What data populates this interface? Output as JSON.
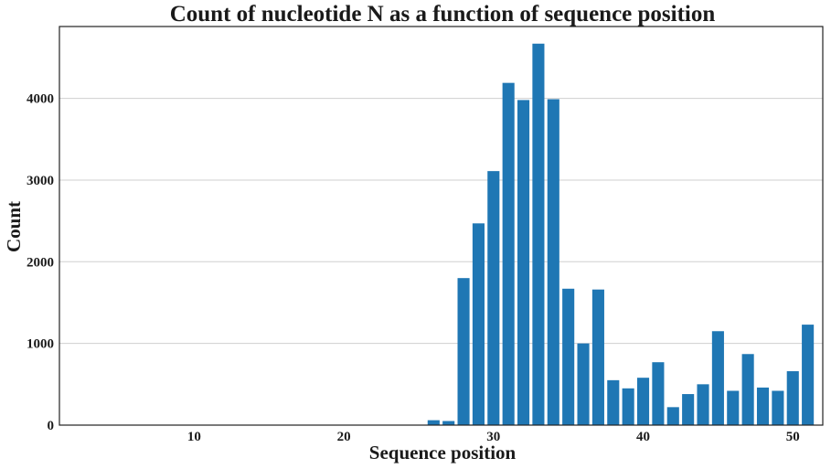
{
  "chart_data": {
    "type": "bar",
    "title": "Count of nucleotide N as a function of sequence position",
    "xlabel": "Sequence position",
    "ylabel": "Count",
    "x": [
      26,
      27,
      28,
      29,
      30,
      31,
      32,
      33,
      34,
      35,
      36,
      37,
      38,
      39,
      40,
      41,
      42,
      43,
      44,
      45,
      46,
      47,
      48,
      49,
      50,
      51
    ],
    "values": [
      60,
      50,
      1800,
      2470,
      3110,
      4190,
      3980,
      4670,
      3990,
      1670,
      1000,
      1660,
      550,
      450,
      580,
      770,
      220,
      380,
      500,
      1150,
      420,
      870,
      460,
      420,
      660,
      1230
    ],
    "xlim": [
      1,
      52
    ],
    "ylim": [
      0,
      4880
    ],
    "xticks": [
      10,
      20,
      30,
      40,
      50
    ],
    "yticks": [
      0,
      1000,
      2000,
      3000,
      4000
    ],
    "grid": "horizontal",
    "bar_color": "#1f77b4"
  }
}
